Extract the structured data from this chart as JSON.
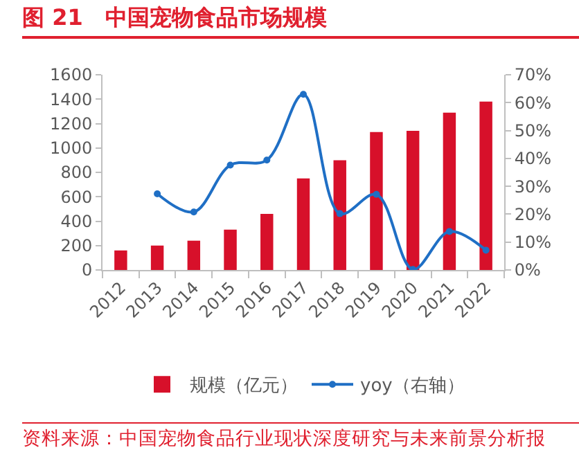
{
  "chart_data": {
    "type": "bar",
    "title": "图 21　中国宠物食品市场规模",
    "categories": [
      "2012",
      "2013",
      "2014",
      "2015",
      "2016",
      "2017",
      "2018",
      "2019",
      "2020",
      "2021",
      "2022"
    ],
    "series": [
      {
        "name": "规模（亿元）",
        "color": "#d7102a",
        "values": [
          160,
          200,
          240,
          330,
          460,
          750,
          900,
          1130,
          1140,
          1290,
          1380
        ]
      },
      {
        "name": "yoy（右轴）",
        "type": "line",
        "axis": "y2",
        "color": "#1f6fc5",
        "marker": "circle",
        "values": [
          null,
          27.3,
          20.8,
          37.6,
          39.4,
          63,
          20.2,
          27.1,
          0.2,
          13.8,
          7.1
        ]
      }
    ],
    "ylim": [
      0,
      1600
    ],
    "yticks": [
      0,
      200,
      400,
      600,
      800,
      1000,
      1200,
      1400,
      1600
    ],
    "y2lim": [
      0,
      70
    ],
    "y2ticks": [
      {
        "value": 0,
        "label": "0%"
      },
      {
        "value": 10,
        "label": "10%"
      },
      {
        "value": 20,
        "label": "20%"
      },
      {
        "value": 30,
        "label": "30%"
      },
      {
        "value": 40,
        "label": "40%"
      },
      {
        "value": 50,
        "label": "50%"
      },
      {
        "value": 60,
        "label": "60%"
      },
      {
        "value": 70,
        "label": "70%"
      }
    ],
    "grid": false,
    "legend": "bottom",
    "annotations": [
      "资料来源：中国宠物食品行业现状深度研究与未来前景分析报"
    ]
  }
}
